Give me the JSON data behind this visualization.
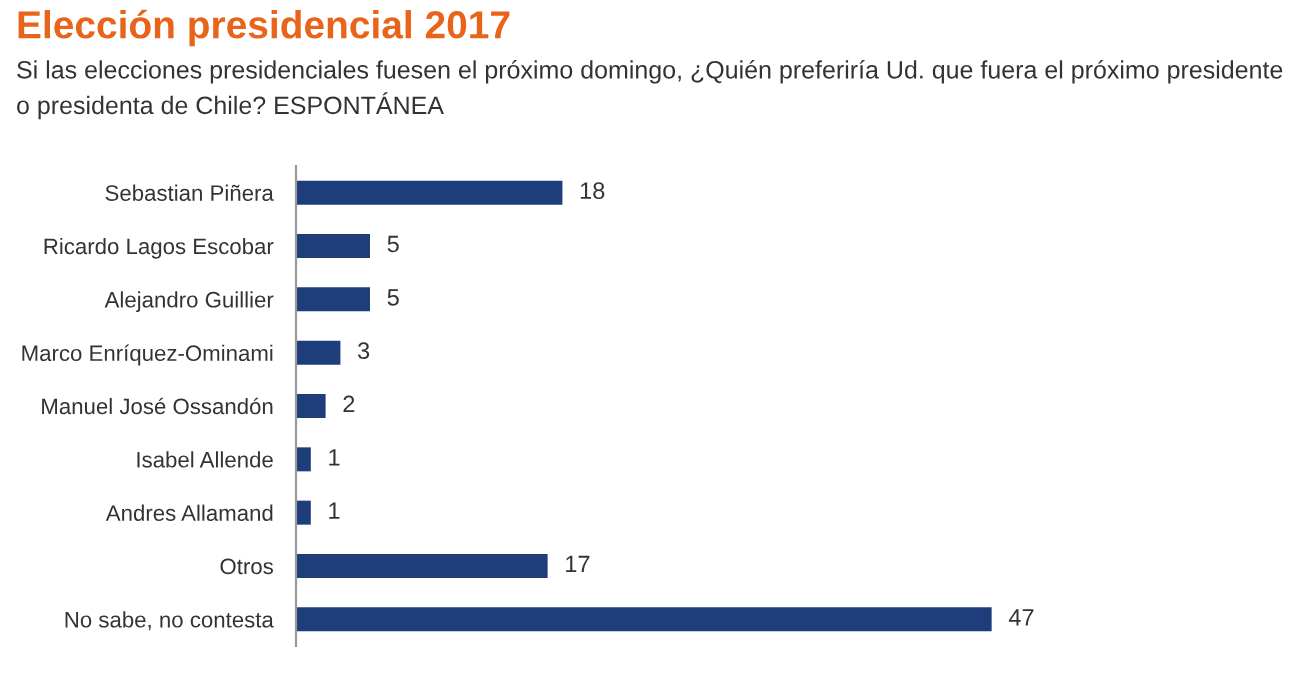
{
  "chart_data": {
    "type": "bar",
    "orientation": "horizontal",
    "title": "Elección presidencial 2017",
    "subtitle": "Si las elecciones presidenciales fuesen el próximo domingo, ¿Quién preferiría Ud. que fuera el próximo presidente o presidenta de Chile? ESPONTÁNEA",
    "categories": [
      "Sebastian Piñera",
      "Ricardo Lagos Escobar",
      "Alejandro Guillier",
      "Marco Enríquez-Ominami",
      "Manuel José Ossandón",
      "Isabel Allende",
      "Andres Allamand",
      "Otros",
      "No sabe, no contesta"
    ],
    "values": [
      18,
      5,
      5,
      3,
      2,
      1,
      1,
      17,
      47
    ],
    "color": "#1f3d7a",
    "data_labels": true,
    "tick_labels": "y",
    "grid": false,
    "legend": false
  }
}
